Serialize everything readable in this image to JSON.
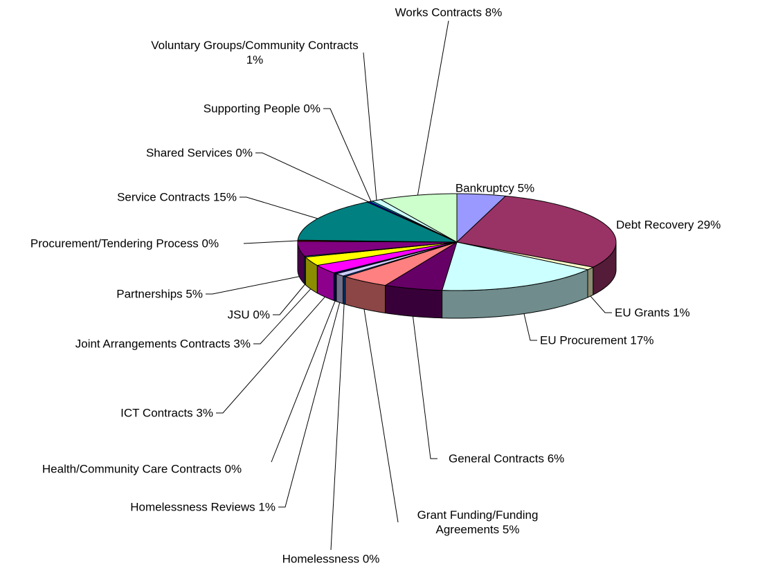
{
  "chart_data": {
    "type": "pie3d",
    "categories": [
      "Bankruptcy",
      "Debt Recovery",
      "EU Grants",
      "EU Procurement",
      "General Contracts",
      "Grant Funding/Funding Agreements",
      "Homelessness",
      "Homelessness Reviews",
      "Health/Community Care Contracts",
      "ICT Contracts",
      "Joint Arrangements Contracts",
      "JSU",
      "Partnerships",
      "Procurement/Tendering Process",
      "Service Contracts",
      "Shared Services",
      "Supporting People",
      "Voluntary Groups/Community Contracts",
      "Works Contracts"
    ],
    "values": [
      5,
      29,
      1,
      17,
      6,
      5,
      0.3,
      1,
      0.4,
      3,
      3,
      0.3,
      5,
      0.4,
      15,
      0.3,
      0.3,
      1,
      8
    ],
    "value_labels": [
      "5%",
      "29%",
      "1%",
      "17%",
      "6%",
      "5%",
      "0%",
      "1%",
      "0%",
      "3%",
      "3%",
      "0%",
      "5%",
      "0%",
      "15%",
      "0%",
      "0%",
      "1%",
      "8%"
    ],
    "colors": [
      "#9999ff",
      "#993366",
      "#ffffcc",
      "#ccffff",
      "#660066",
      "#ff8080",
      "#0066cc",
      "#ccccff",
      "#000080",
      "#ff00ff",
      "#ffff00",
      "#00ffff",
      "#800080",
      "#800000",
      "#008080",
      "#0000ff",
      "#00ccff",
      "#ccffff",
      "#ccffcc"
    ]
  }
}
